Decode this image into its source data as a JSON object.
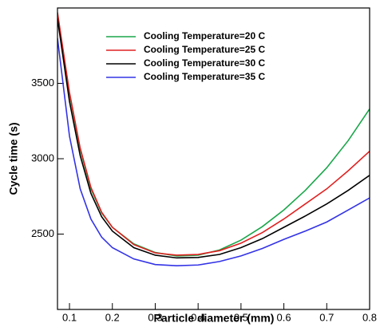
{
  "chart_data": {
    "type": "line",
    "x_label": "Particle diameter (mm)",
    "y_label": "Cycle time (s)",
    "x": [
      0.072,
      0.1,
      0.125,
      0.15,
      0.175,
      0.2,
      0.25,
      0.3,
      0.35,
      0.4,
      0.45,
      0.5,
      0.55,
      0.6,
      0.65,
      0.7,
      0.75,
      0.8
    ],
    "series": [
      {
        "name": "Cooling Temperature=20 C",
        "color": "#1aa64a",
        "values": [
          3960,
          3430,
          3060,
          2800,
          2640,
          2545,
          2435,
          2378,
          2355,
          2360,
          2395,
          2460,
          2550,
          2660,
          2790,
          2940,
          3120,
          3330
        ]
      },
      {
        "name": "Cooling Temperature=25 C",
        "color": "#e02020",
        "values": [
          3970,
          3440,
          3070,
          2810,
          2645,
          2545,
          2430,
          2375,
          2360,
          2365,
          2390,
          2440,
          2510,
          2600,
          2700,
          2800,
          2920,
          3050
        ]
      },
      {
        "name": "Cooling Temperature=30 C",
        "color": "#000000",
        "values": [
          3930,
          3380,
          3020,
          2770,
          2615,
          2520,
          2410,
          2360,
          2342,
          2345,
          2365,
          2410,
          2470,
          2545,
          2620,
          2700,
          2790,
          2890
        ]
      },
      {
        "name": "Cooling Temperature=35 C",
        "color": "#3333e6",
        "values": [
          3800,
          3150,
          2800,
          2600,
          2480,
          2410,
          2335,
          2298,
          2290,
          2295,
          2318,
          2355,
          2405,
          2465,
          2520,
          2580,
          2660,
          2740
        ]
      }
    ],
    "xlim": [
      0.072,
      0.8
    ],
    "xticks": [
      0.1,
      0.2,
      0.3,
      0.4,
      0.5,
      0.6,
      0.7,
      0.8
    ],
    "ylim": [
      2000,
      4000
    ],
    "yticks": [
      2500,
      3000,
      3500
    ],
    "legend": "upper center"
  }
}
